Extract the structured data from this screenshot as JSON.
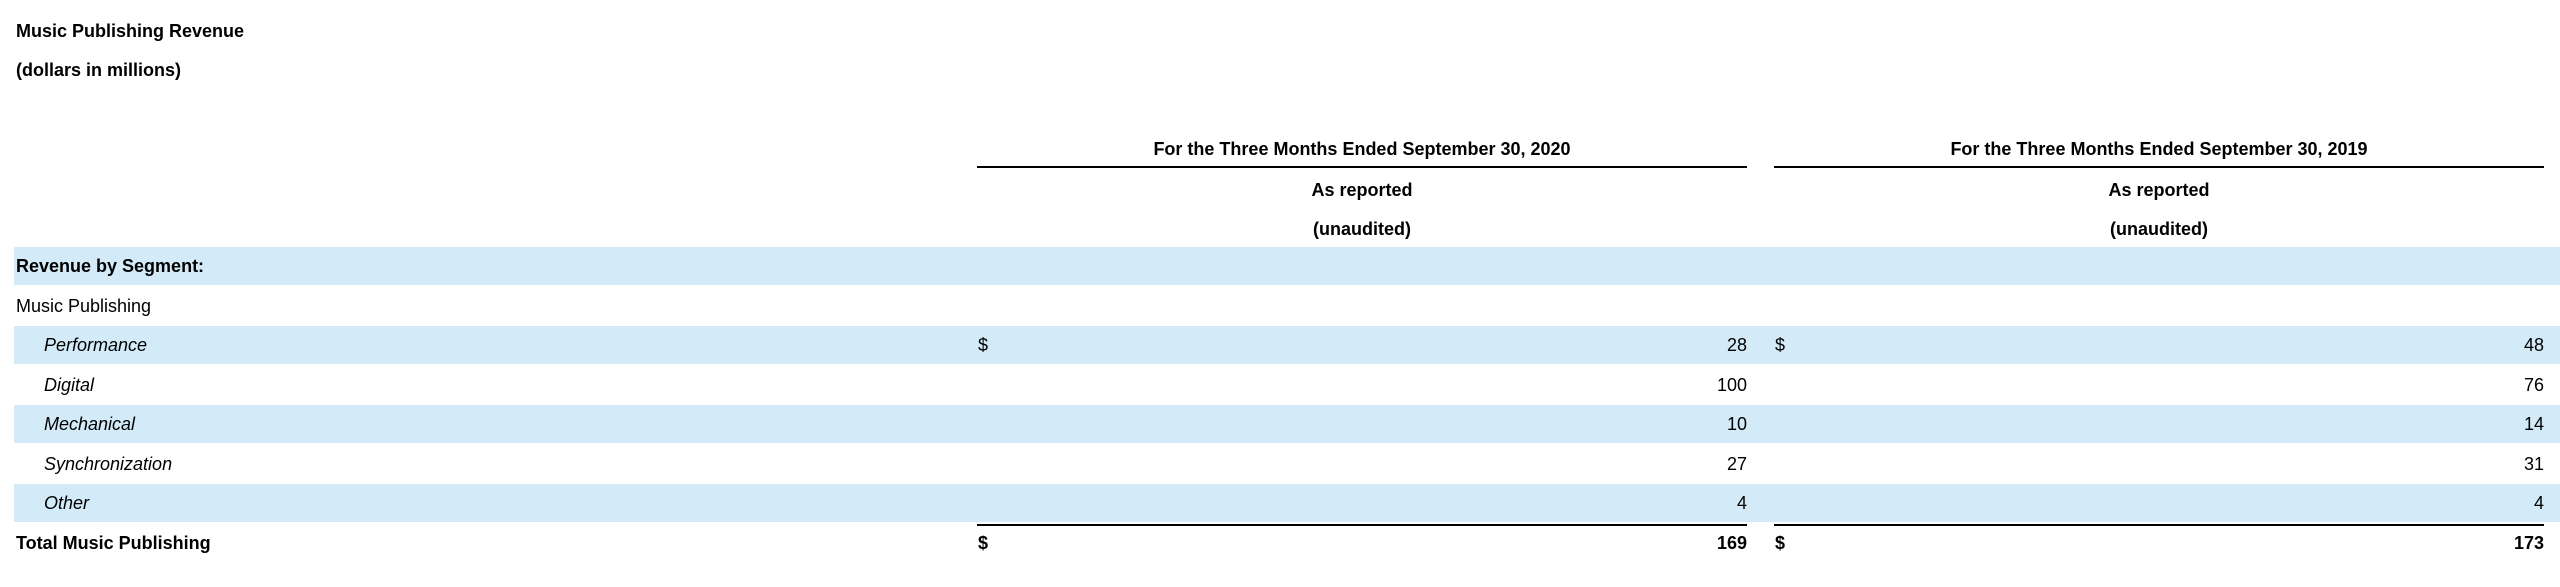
{
  "title": "Music Publishing Revenue",
  "subtitle": "(dollars in millions)",
  "columns": [
    {
      "period": "For the Three Months Ended September 30, 2020",
      "basis": "As reported",
      "status": "(unaudited)"
    },
    {
      "period": "For the Three Months Ended September 30, 2019",
      "basis": "As reported",
      "status": "(unaudited)"
    }
  ],
  "section_label": "Revenue by Segment:",
  "segment_label": "Music Publishing",
  "rows": [
    {
      "label": "Performance",
      "c1_symbol": "$",
      "c1": "28",
      "c2_symbol": "$",
      "c2": "48"
    },
    {
      "label": "Digital",
      "c1": "100",
      "c2": "76"
    },
    {
      "label": "Mechanical",
      "c1": "10",
      "c2": "14"
    },
    {
      "label": "Synchronization",
      "c1": "27",
      "c2": "31"
    },
    {
      "label": "Other",
      "c1": "4",
      "c2": "4"
    }
  ],
  "total": {
    "label": "Total Music Publishing",
    "c1_symbol": "$",
    "c1": "169",
    "c2_symbol": "$",
    "c2": "173"
  },
  "colors": {
    "row_shade": "#d3ebf9",
    "text": "#000000"
  }
}
